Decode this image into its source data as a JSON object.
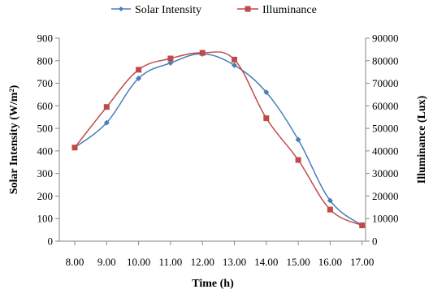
{
  "chart_data": {
    "type": "line",
    "title": "",
    "xlabel": "Time (h)",
    "ylabel_left": "Solar Intensity (W/m²)",
    "ylabel_right": "Illuminance (Lux)",
    "categories": [
      "8.00",
      "9.00",
      "10.00",
      "11.00",
      "12.00",
      "13.00",
      "14.00",
      "15.00",
      "16.00",
      "17.00"
    ],
    "y_left": {
      "range": [
        0,
        900
      ],
      "ticks": [
        "0",
        "100",
        "200",
        "300",
        "400",
        "500",
        "600",
        "700",
        "800",
        "900"
      ]
    },
    "y_right": {
      "range": [
        0,
        90000
      ],
      "ticks": [
        "0",
        "10000",
        "20000",
        "30000",
        "40000",
        "50000",
        "60000",
        "70000",
        "80000",
        "90000"
      ]
    },
    "grid": false,
    "legend_position": "top",
    "series": [
      {
        "name": "Solar Intensity",
        "axis": "left",
        "color": "#4a7ebb",
        "marker": "diamond",
        "values": [
          415,
          525,
          722,
          790,
          830,
          780,
          660,
          450,
          180,
          70
        ]
      },
      {
        "name": "Illuminance",
        "axis": "right",
        "color": "#be4b48",
        "marker": "square",
        "values": [
          41500,
          59500,
          76000,
          81000,
          83500,
          80500,
          54500,
          36000,
          14000,
          7000
        ]
      }
    ]
  }
}
